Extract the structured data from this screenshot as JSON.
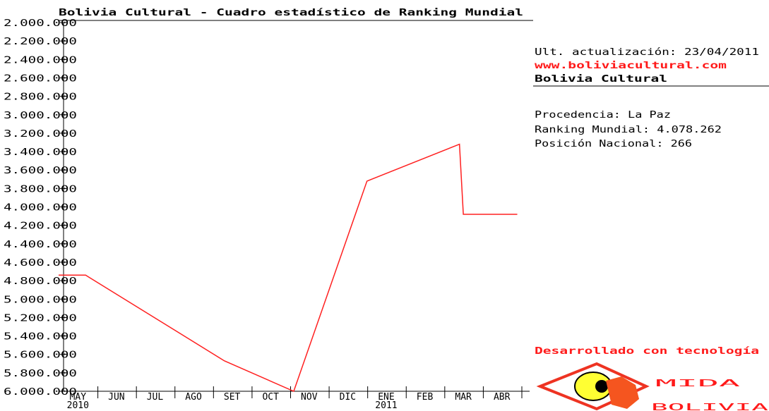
{
  "chart_data": {
    "type": "line",
    "title": "Bolivia Cultural - Cuadro estadístico de Ranking Mundial",
    "categories": [
      "MAY",
      "JUN",
      "JUL",
      "AGO",
      "SET",
      "OCT",
      "NOV",
      "DIC",
      "ENE",
      "FEB",
      "MAR",
      "ABR"
    ],
    "years": [
      "2010",
      null,
      null,
      null,
      null,
      null,
      null,
      null,
      "2011",
      null,
      null,
      null
    ],
    "series": [
      {
        "color": "#ff2020",
        "x": [
          0,
          0.7,
          4.3,
          6.1,
          8.0,
          10.4,
          10.5,
          11.9
        ],
        "values": [
          4740000,
          4740000,
          5670000,
          6000000,
          3720000,
          3320000,
          4080000,
          4080000
        ]
      }
    ],
    "xlim": [
      0,
      12
    ],
    "ylim": [
      2000000,
      6000000
    ],
    "y_inverted": true,
    "yticks": [
      {
        "value": 2000000,
        "label": "2.000.000"
      },
      {
        "value": 2200000,
        "label": "2.200.000"
      },
      {
        "value": 2400000,
        "label": "2.400.000"
      },
      {
        "value": 2600000,
        "label": "2.600.000"
      },
      {
        "value": 2800000,
        "label": "2.800.000"
      },
      {
        "value": 3000000,
        "label": "3.000.000"
      },
      {
        "value": 3200000,
        "label": "3.200.000"
      },
      {
        "value": 3400000,
        "label": "3.400.000"
      },
      {
        "value": 3600000,
        "label": "3.600.000"
      },
      {
        "value": 3800000,
        "label": "3.800.000"
      },
      {
        "value": 4000000,
        "label": "4.000.000"
      },
      {
        "value": 4200000,
        "label": "4.200.000"
      },
      {
        "value": 4400000,
        "label": "4.400.000"
      },
      {
        "value": 4600000,
        "label": "4.600.000"
      },
      {
        "value": 4800000,
        "label": "4.800.000"
      },
      {
        "value": 5000000,
        "label": "5.000.000"
      },
      {
        "value": 5200000,
        "label": "5.200.000"
      },
      {
        "value": 5400000,
        "label": "5.400.000"
      },
      {
        "value": 5600000,
        "label": "5.600.000"
      },
      {
        "value": 5800000,
        "label": "5.800.000"
      },
      {
        "value": 6000000,
        "label": "6.000.000"
      }
    ],
    "grid": false
  },
  "info": {
    "updated": "Ult. actualización: 23/04/2011",
    "url": "www.boliviacultural.com",
    "site": "Bolivia Cultural",
    "origin": "Procedencia: La Paz",
    "ranking": "Ranking Mundial: 4.078.262",
    "position": "Posición Nacional: 266",
    "powered": "Desarrollado con tecnología",
    "logo": [
      "MIDA",
      "BOLIVIA"
    ]
  }
}
